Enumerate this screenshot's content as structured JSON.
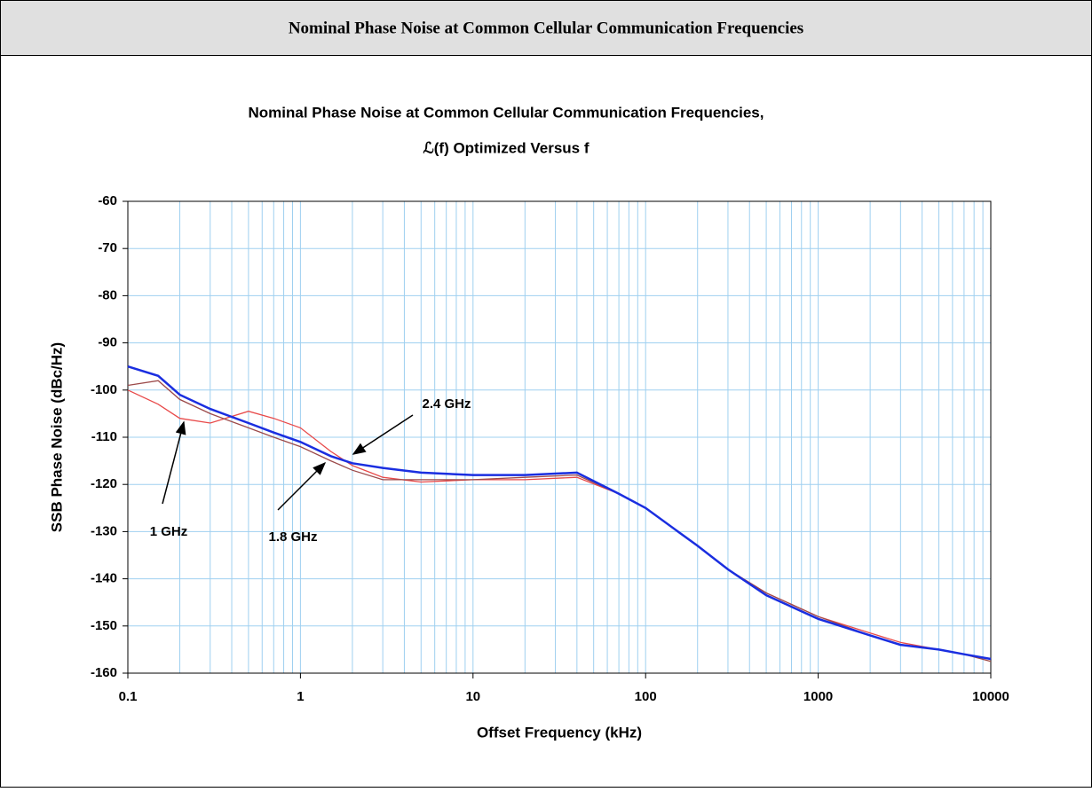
{
  "header": {
    "title": "Nominal Phase Noise at Common Cellular Communication Frequencies"
  },
  "chart_data": {
    "type": "line",
    "title": "Nominal Phase Noise at Common Cellular Communication Frequencies,",
    "subtitle": "ℒ(f) Optimized Versus f",
    "x_label": "Offset Frequency (kHz)",
    "y_label": "SSB Phase Noise (dBc/Hz)",
    "x": [
      0.1,
      0.15,
      0.2,
      0.3,
      0.5,
      0.7,
      1,
      1.5,
      2,
      3,
      5,
      10,
      20,
      40,
      70,
      100,
      200,
      300,
      500,
      1000,
      2000,
      3000,
      5000,
      7000,
      10000
    ],
    "series": [
      {
        "name": "1 GHz",
        "color": "#e84a4a",
        "values": [
          -100,
          -103,
          -106,
          -107,
          -104.5,
          -106,
          -108,
          -113,
          -116,
          -118.5,
          -119.5,
          -119,
          -119,
          -118.5,
          -122,
          -125,
          -133,
          -138,
          -143,
          -148,
          -151.5,
          -153.5,
          -155,
          -156,
          -157
        ]
      },
      {
        "name": "1.8 GHz",
        "color": "#9c4a4a",
        "values": [
          -99,
          -98,
          -102,
          -105,
          -108,
          -110,
          -112,
          -115,
          -117,
          -119,
          -119,
          -119,
          -118.5,
          -118,
          -122,
          -125,
          -133,
          -138,
          -143,
          -148,
          -152,
          -154,
          -155,
          -156,
          -157.5
        ]
      },
      {
        "name": "2.4 GHz",
        "color": "#1a2ee0",
        "values": [
          -95,
          -97,
          -101,
          -104,
          -107,
          -109,
          -111,
          -114,
          -115.5,
          -116.5,
          -117.5,
          -118,
          -118,
          -117.5,
          -122,
          -125,
          -133,
          -138,
          -143.5,
          -148.5,
          -152,
          -154,
          -155,
          -156,
          -157
        ]
      }
    ],
    "xlim": [
      0.1,
      10000
    ],
    "xticks": [
      0.1,
      1,
      10,
      100,
      1000,
      10000
    ],
    "xlog": true,
    "ylim": [
      -160,
      -60
    ],
    "yticks": [
      -60,
      -70,
      -80,
      -90,
      -100,
      -110,
      -120,
      -130,
      -140,
      -150,
      -160
    ],
    "grid": true
  }
}
